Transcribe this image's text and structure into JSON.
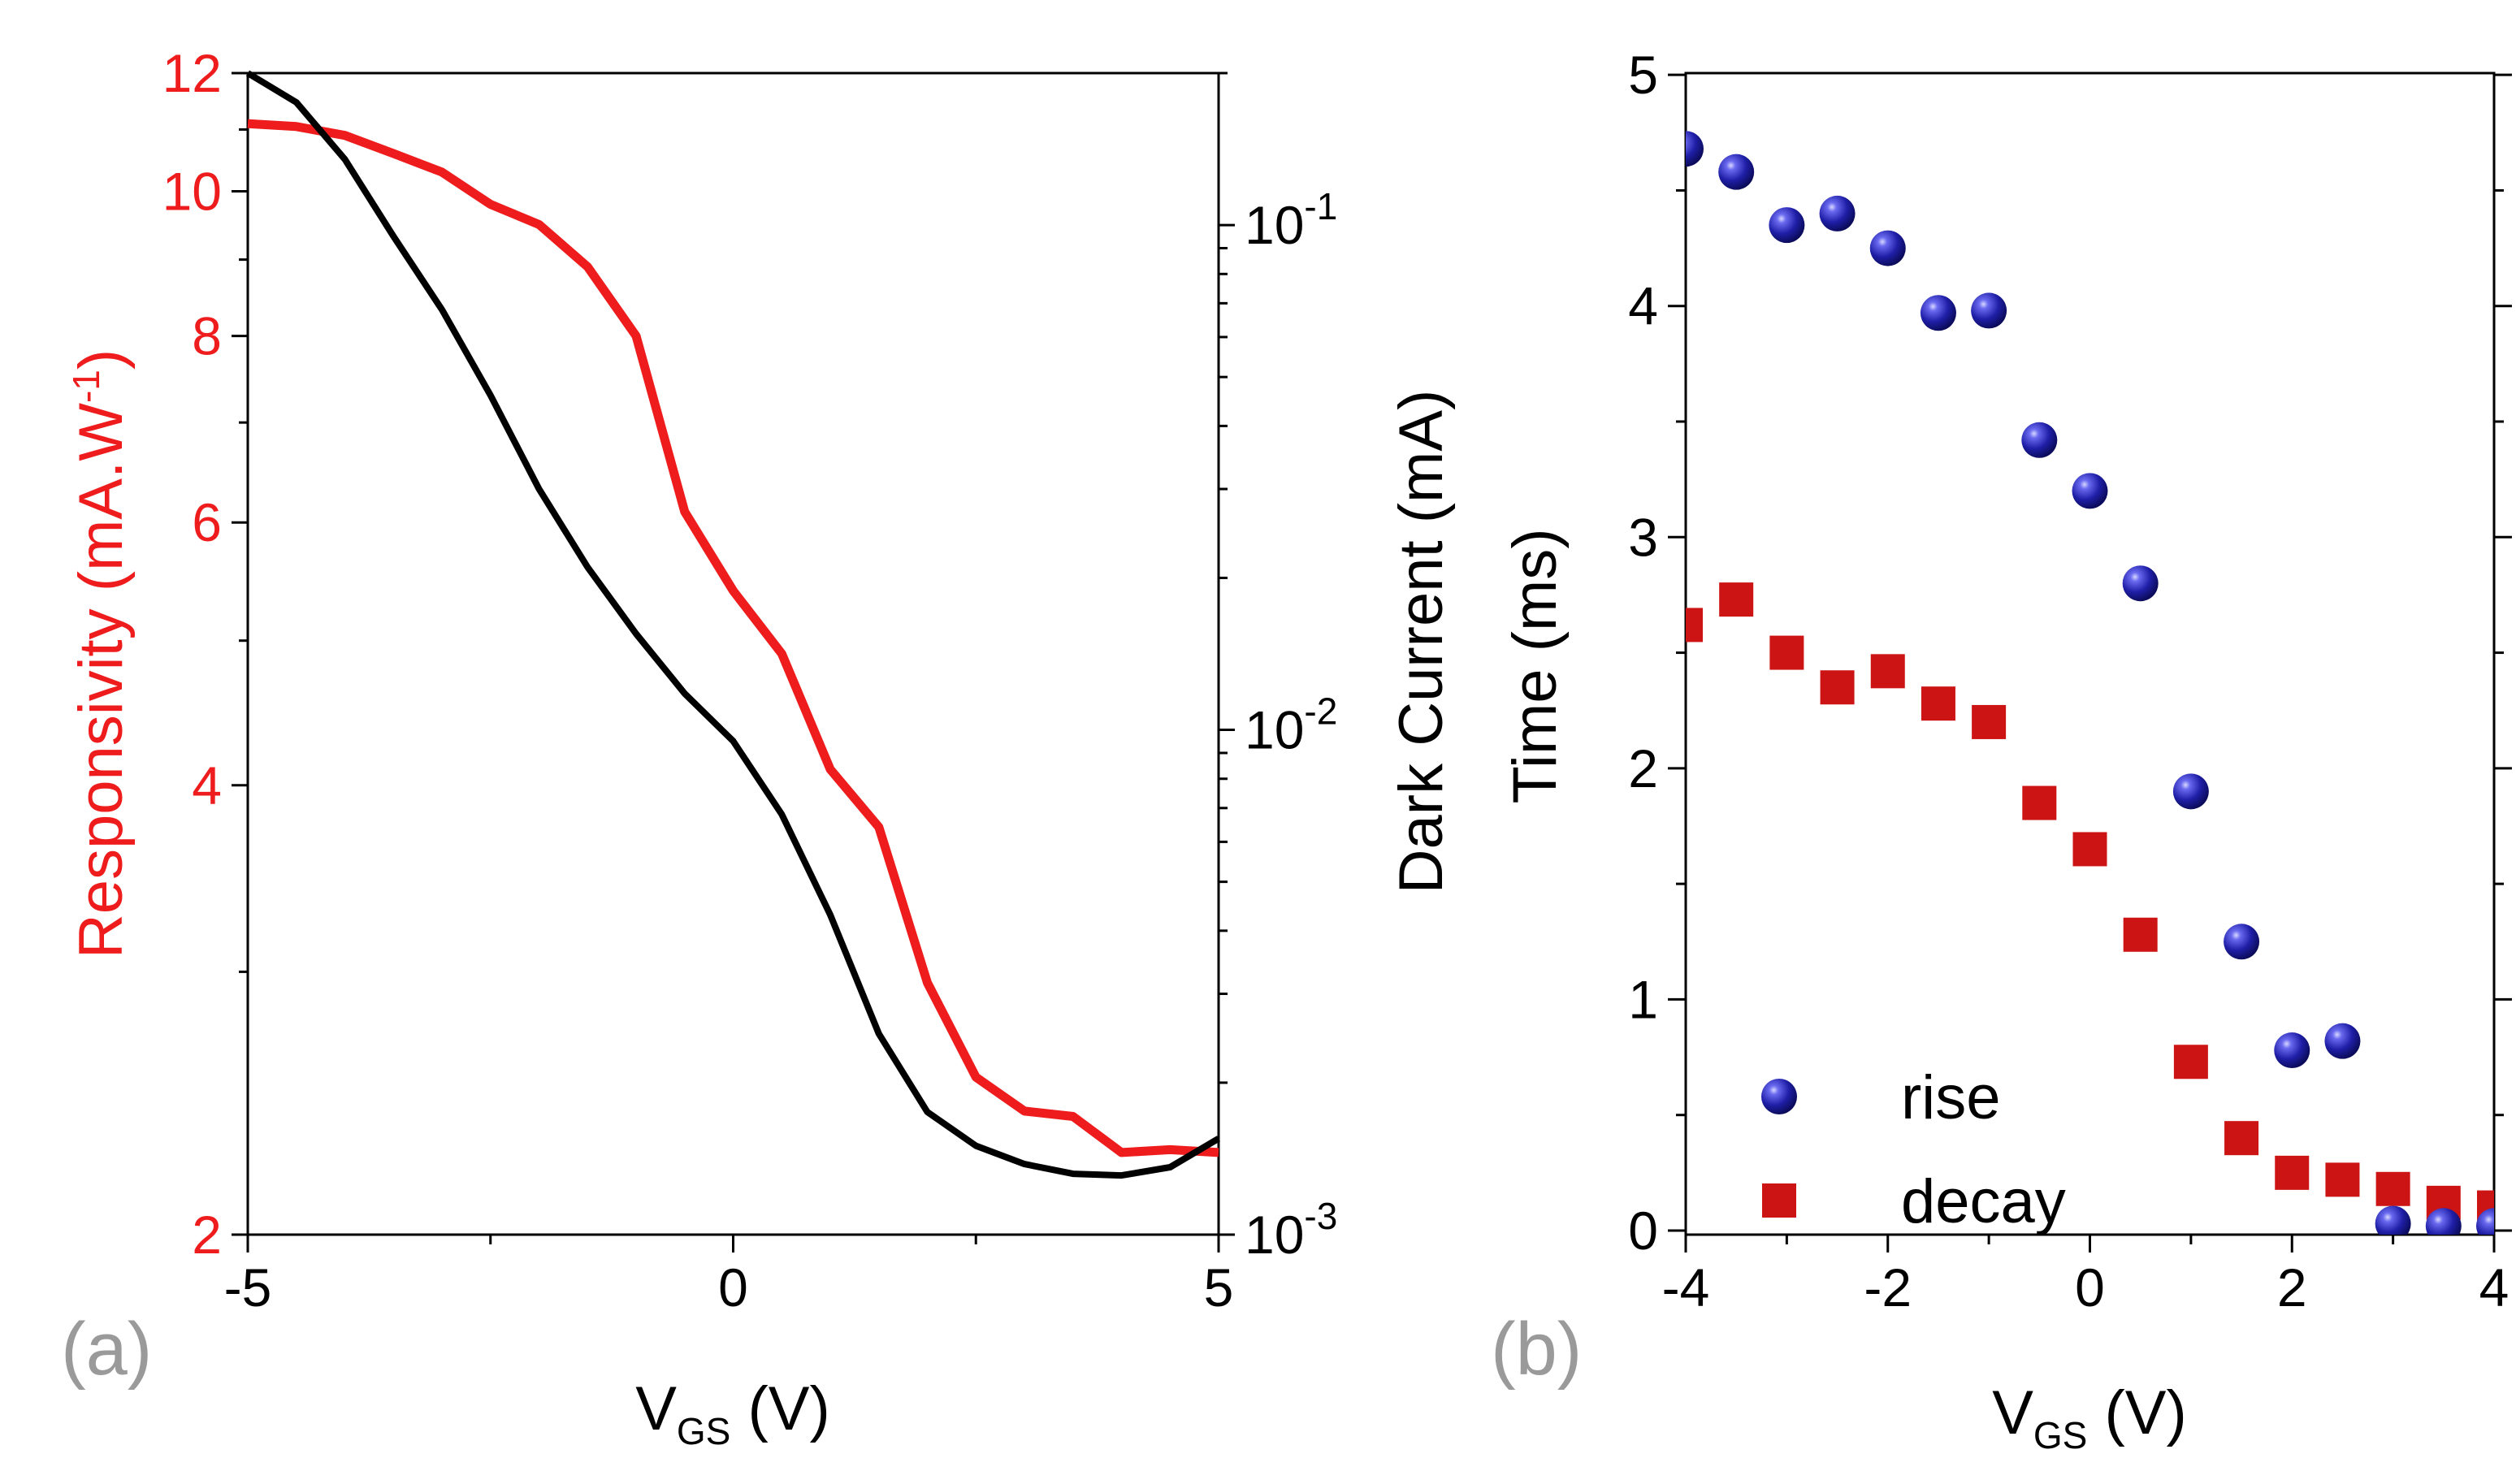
{
  "colors": {
    "responsivity": "#ee1c1c",
    "dark_current": "#000000",
    "rise": "#1f1fa8",
    "decay": "#cc1414",
    "panel_label": "#9a9a9a"
  },
  "chart_data": [
    {
      "type": "line",
      "panel_label": "(a)",
      "xlabel": {
        "main": "V",
        "sub": "GS",
        "unit": " (V)"
      },
      "ylabel_left": {
        "main": "Responsivity (mA.W",
        "sup": "-1",
        "close": ")"
      },
      "ylabel_right": "Dark Current (mA)",
      "xlim": [
        -5,
        5
      ],
      "ylim_left": [
        2,
        12
      ],
      "ylim_right": [
        0.001,
        0.2
      ],
      "left_scale": "log",
      "right_scale": "log",
      "x_ticks": [
        "-5",
        "0",
        "5"
      ],
      "x_tick_values": [
        -5,
        0,
        5
      ],
      "y_ticks_left": [
        "2",
        "4",
        "6",
        "8",
        "10",
        "12"
      ],
      "y_tick_values_left": [
        2,
        4,
        6,
        8,
        10,
        12
      ],
      "y_ticks_right": [
        {
          "base": "10",
          "exp": "-3",
          "value": 0.001
        },
        {
          "base": "10",
          "exp": "-2",
          "value": 0.01
        },
        {
          "base": "10",
          "exp": "-1",
          "value": 0.1
        }
      ],
      "series": [
        {
          "name": "Responsivity",
          "axis": "left",
          "x": [
            -5,
            -4.5,
            -4,
            -3.5,
            -3,
            -2.5,
            -2,
            -1.5,
            -1,
            -0.5,
            0,
            0.5,
            1,
            1.5,
            2,
            2.5,
            3,
            3.5,
            4,
            4.5,
            5
          ],
          "values": [
            11.1,
            11.05,
            10.9,
            10.6,
            10.3,
            9.8,
            9.5,
            8.9,
            8.0,
            6.1,
            5.4,
            4.9,
            4.1,
            3.75,
            2.95,
            2.55,
            2.42,
            2.4,
            2.27,
            2.28,
            2.27
          ]
        },
        {
          "name": "Dark Current",
          "axis": "right",
          "x": [
            -5,
            -4.5,
            -4,
            -3.5,
            -3,
            -2.5,
            -2,
            -1.5,
            -1,
            -0.5,
            0,
            0.5,
            1,
            1.5,
            2,
            2.5,
            3,
            3.5,
            4,
            4.5,
            5
          ],
          "values": [
            0.2,
            0.175,
            0.135,
            0.095,
            0.068,
            0.046,
            0.03,
            0.021,
            0.0155,
            0.0118,
            0.0095,
            0.0068,
            0.0043,
            0.0025,
            0.00175,
            0.0015,
            0.00138,
            0.00132,
            0.00131,
            0.00136,
            0.00155
          ]
        }
      ]
    },
    {
      "type": "scatter",
      "panel_label": "(b)",
      "xlabel": {
        "main": "V",
        "sub": "GS",
        "unit": " (V)"
      },
      "ylabel": "Time (ms)",
      "xlim": [
        -4,
        4
      ],
      "ylim": [
        0,
        5
      ],
      "x_ticks": [
        "-4",
        "-2",
        "0",
        "2",
        "4"
      ],
      "x_tick_values": [
        -4,
        -2,
        0,
        2,
        4
      ],
      "y_ticks": [
        "0",
        "1",
        "2",
        "3",
        "4",
        "5"
      ],
      "y_tick_values": [
        0,
        1,
        2,
        3,
        4,
        5
      ],
      "legend_position": "bottom-left",
      "series": [
        {
          "name": "rise",
          "marker": "circle",
          "x": [
            -4,
            -3.5,
            -3,
            -2.5,
            -2,
            -1.5,
            -1,
            -0.5,
            0,
            0.5,
            1,
            1.5,
            2,
            2.5,
            3,
            3.5,
            4
          ],
          "values": [
            4.68,
            4.58,
            4.35,
            4.4,
            4.25,
            3.97,
            3.98,
            3.42,
            3.2,
            2.8,
            1.9,
            1.25,
            0.78,
            0.82,
            0.03,
            0.02,
            0.02
          ]
        },
        {
          "name": "decay",
          "marker": "square",
          "x": [
            -4,
            -3.5,
            -3,
            -2.5,
            -2,
            -1.5,
            -1,
            -0.5,
            0,
            0.5,
            1,
            1.5,
            2,
            2.5,
            3,
            3.5,
            4
          ],
          "values": [
            2.62,
            2.73,
            2.5,
            2.35,
            2.42,
            2.28,
            2.2,
            1.85,
            1.65,
            1.28,
            0.73,
            0.4,
            0.25,
            0.22,
            0.18,
            0.12,
            0.1
          ]
        }
      ]
    }
  ]
}
